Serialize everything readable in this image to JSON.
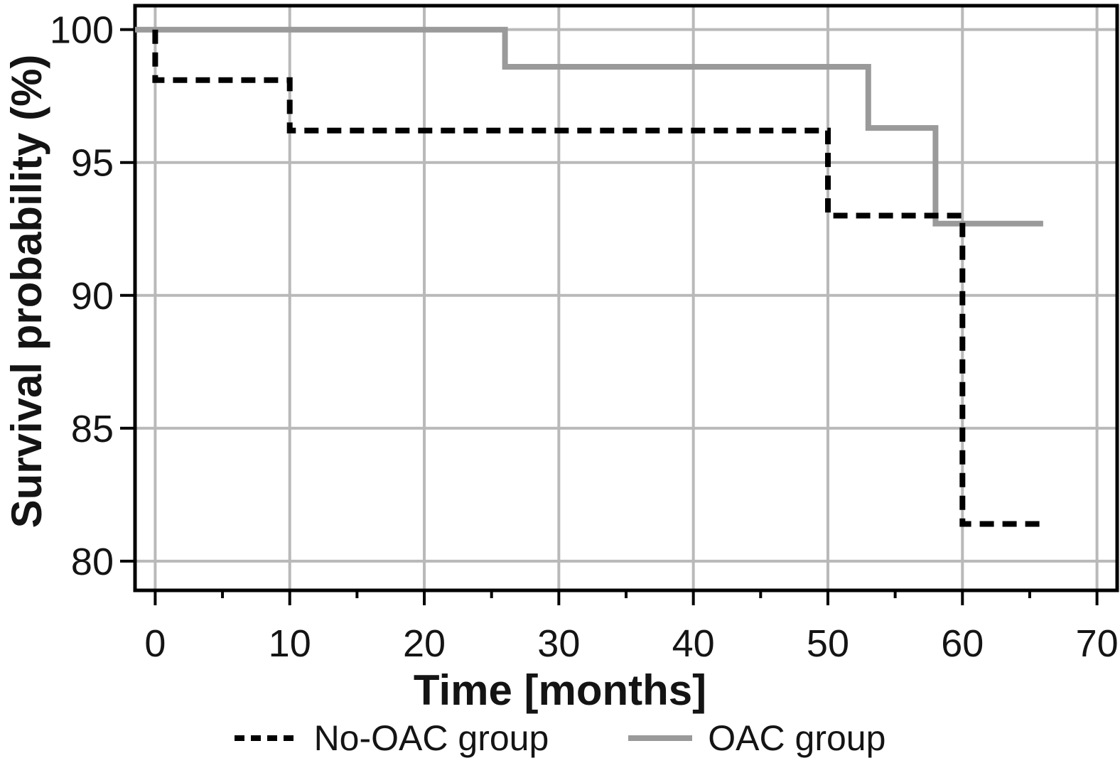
{
  "chart_data": {
    "type": "line",
    "subtype": "kaplan-meier-step",
    "title": "",
    "xlabel": "Time [months]",
    "ylabel": "Survival probability (%)",
    "x_ticks": [
      0,
      10,
      20,
      30,
      40,
      50,
      60,
      70
    ],
    "x_minor_ticks": [
      5,
      15,
      25,
      35,
      45,
      55,
      65
    ],
    "y_ticks": [
      80,
      85,
      90,
      95,
      100
    ],
    "x_range_visible": [
      -1.5,
      71.5
    ],
    "y_range_visible": [
      78.9,
      100.9
    ],
    "grid": true,
    "legend_position": "bottom-center",
    "series": [
      {
        "name": "OAC group",
        "style": "solid",
        "color": "#9a9a9a",
        "starts_at_axis": true,
        "points": [
          [
            0,
            100
          ],
          [
            26,
            100
          ],
          [
            26,
            98.6
          ],
          [
            53,
            98.6
          ],
          [
            53,
            96.3
          ],
          [
            58,
            96.3
          ],
          [
            58,
            92.7
          ],
          [
            66,
            92.7
          ]
        ]
      },
      {
        "name": "No-OAC group",
        "style": "dashed",
        "color": "#000000",
        "starts_at_axis": false,
        "points": [
          [
            0,
            100
          ],
          [
            0,
            98.1
          ],
          [
            10,
            98.1
          ],
          [
            10,
            96.2
          ],
          [
            50,
            96.2
          ],
          [
            50,
            93.0
          ],
          [
            60,
            93.0
          ],
          [
            60,
            81.4
          ],
          [
            66,
            81.4
          ]
        ]
      }
    ],
    "colors": {
      "gridline": "#b9b9b9",
      "axis": "#000000",
      "tick_text": "#141414"
    }
  },
  "legend": {
    "items": [
      {
        "label": "No-OAC group",
        "swatch": "dashed-black-line"
      },
      {
        "label": "OAC group",
        "swatch": "solid-gray-line"
      }
    ]
  }
}
